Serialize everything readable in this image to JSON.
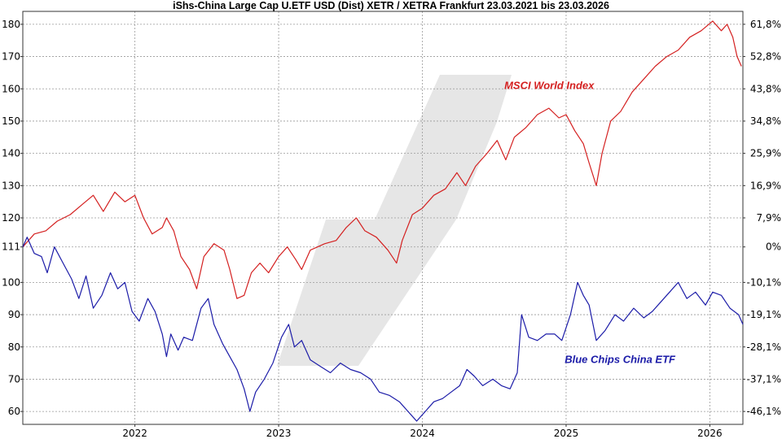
{
  "chart_data": {
    "type": "line",
    "title": "iShs-China Large Cap U.ETF USD (Dist) XETR / XETRA Frankfurt 23.03.2021 bis 23.03.2026",
    "xlabel": "",
    "ylabel": "",
    "x_range": [
      2021.22,
      2026.23
    ],
    "ylim": [
      56,
      184
    ],
    "x_ticks": [
      {
        "label": "2022",
        "value": 2022.0
      },
      {
        "label": "2023",
        "value": 2023.0
      },
      {
        "label": "2024",
        "value": 2024.0
      },
      {
        "label": "2025",
        "value": 2025.0
      },
      {
        "label": "2026",
        "value": 2026.0
      }
    ],
    "y_ticks_left": [
      {
        "label": "60",
        "value": 60
      },
      {
        "label": "70",
        "value": 70
      },
      {
        "label": "80",
        "value": 80
      },
      {
        "label": "90",
        "value": 90
      },
      {
        "label": "100",
        "value": 100
      },
      {
        "label": "111",
        "value": 111
      },
      {
        "label": "120",
        "value": 120
      },
      {
        "label": "130",
        "value": 130
      },
      {
        "label": "140",
        "value": 140
      },
      {
        "label": "150",
        "value": 150
      },
      {
        "label": "160",
        "value": 160
      },
      {
        "label": "170",
        "value": 170
      },
      {
        "label": "180",
        "value": 180
      }
    ],
    "y_ticks_right": [
      {
        "label": "61,8%",
        "value": 180
      },
      {
        "label": "52,8%",
        "value": 170
      },
      {
        "label": "43,8%",
        "value": 160
      },
      {
        "label": "34,8%",
        "value": 150
      },
      {
        "label": "25,9%",
        "value": 140
      },
      {
        "label": "16,9%",
        "value": 130
      },
      {
        "label": "7,9%",
        "value": 120
      },
      {
        "label": "0%",
        "value": 111
      },
      {
        "label": "-10,1%",
        "value": 100
      },
      {
        "label": "-19,1%",
        "value": 90
      },
      {
        "label": "-28,1%",
        "value": 80
      },
      {
        "label": "-37,1%",
        "value": 70
      },
      {
        "label": "-46,1%",
        "value": 60
      }
    ],
    "series": [
      {
        "name": "MSCI World Index",
        "color": "#d42020",
        "points": [
          [
            2021.22,
            111
          ],
          [
            2021.3,
            115
          ],
          [
            2021.38,
            116
          ],
          [
            2021.46,
            119
          ],
          [
            2021.55,
            121
          ],
          [
            2021.63,
            124
          ],
          [
            2021.71,
            127
          ],
          [
            2021.78,
            122
          ],
          [
            2021.86,
            128
          ],
          [
            2021.93,
            125
          ],
          [
            2022.0,
            127
          ],
          [
            2022.06,
            120
          ],
          [
            2022.12,
            115
          ],
          [
            2022.19,
            117
          ],
          [
            2022.22,
            120
          ],
          [
            2022.27,
            116
          ],
          [
            2022.32,
            108
          ],
          [
            2022.38,
            104
          ],
          [
            2022.43,
            98
          ],
          [
            2022.48,
            108
          ],
          [
            2022.55,
            112
          ],
          [
            2022.62,
            110
          ],
          [
            2022.66,
            104
          ],
          [
            2022.71,
            95
          ],
          [
            2022.76,
            96
          ],
          [
            2022.81,
            103
          ],
          [
            2022.87,
            106
          ],
          [
            2022.93,
            103
          ],
          [
            2023.0,
            108
          ],
          [
            2023.06,
            111
          ],
          [
            2023.12,
            107
          ],
          [
            2023.16,
            104
          ],
          [
            2023.22,
            110
          ],
          [
            2023.32,
            112
          ],
          [
            2023.4,
            113
          ],
          [
            2023.47,
            117
          ],
          [
            2023.54,
            120
          ],
          [
            2023.6,
            116
          ],
          [
            2023.68,
            114
          ],
          [
            2023.76,
            110
          ],
          [
            2023.82,
            106
          ],
          [
            2023.86,
            113
          ],
          [
            2023.93,
            121
          ],
          [
            2024.0,
            123
          ],
          [
            2024.08,
            127
          ],
          [
            2024.16,
            129
          ],
          [
            2024.24,
            134
          ],
          [
            2024.3,
            130
          ],
          [
            2024.37,
            136
          ],
          [
            2024.45,
            140
          ],
          [
            2024.52,
            144
          ],
          [
            2024.58,
            138
          ],
          [
            2024.64,
            145
          ],
          [
            2024.72,
            148
          ],
          [
            2024.8,
            152
          ],
          [
            2024.88,
            154
          ],
          [
            2024.95,
            151
          ],
          [
            2025.0,
            152
          ],
          [
            2025.06,
            147
          ],
          [
            2025.12,
            143
          ],
          [
            2025.16,
            137
          ],
          [
            2025.21,
            130
          ],
          [
            2025.25,
            140
          ],
          [
            2025.31,
            150
          ],
          [
            2025.38,
            153
          ],
          [
            2025.46,
            159
          ],
          [
            2025.54,
            163
          ],
          [
            2025.62,
            167
          ],
          [
            2025.7,
            170
          ],
          [
            2025.78,
            172
          ],
          [
            2025.86,
            176
          ],
          [
            2025.94,
            178
          ],
          [
            2026.02,
            181
          ],
          [
            2026.08,
            178
          ],
          [
            2026.12,
            180
          ],
          [
            2026.16,
            176
          ],
          [
            2026.19,
            170
          ],
          [
            2026.22,
            167
          ]
        ]
      },
      {
        "name": "Blue Chips China ETF",
        "color": "#1c1ca8",
        "points": [
          [
            2021.22,
            111
          ],
          [
            2021.25,
            114
          ],
          [
            2021.3,
            109
          ],
          [
            2021.35,
            108
          ],
          [
            2021.39,
            103
          ],
          [
            2021.44,
            111
          ],
          [
            2021.5,
            106
          ],
          [
            2021.56,
            101
          ],
          [
            2021.61,
            95
          ],
          [
            2021.66,
            102
          ],
          [
            2021.71,
            92
          ],
          [
            2021.77,
            96
          ],
          [
            2021.83,
            103
          ],
          [
            2021.88,
            98
          ],
          [
            2021.93,
            100
          ],
          [
            2021.98,
            91
          ],
          [
            2022.03,
            88
          ],
          [
            2022.09,
            95
          ],
          [
            2022.14,
            91
          ],
          [
            2022.19,
            84
          ],
          [
            2022.22,
            77
          ],
          [
            2022.25,
            84
          ],
          [
            2022.3,
            79
          ],
          [
            2022.34,
            83
          ],
          [
            2022.4,
            82
          ],
          [
            2022.46,
            92
          ],
          [
            2022.51,
            95
          ],
          [
            2022.55,
            87
          ],
          [
            2022.61,
            81
          ],
          [
            2022.66,
            77
          ],
          [
            2022.71,
            73
          ],
          [
            2022.76,
            67
          ],
          [
            2022.8,
            60
          ],
          [
            2022.84,
            66
          ],
          [
            2022.9,
            70
          ],
          [
            2022.96,
            75
          ],
          [
            2023.02,
            83
          ],
          [
            2023.07,
            87
          ],
          [
            2023.11,
            80
          ],
          [
            2023.16,
            82
          ],
          [
            2023.22,
            76
          ],
          [
            2023.29,
            74
          ],
          [
            2023.36,
            72
          ],
          [
            2023.43,
            75
          ],
          [
            2023.5,
            73
          ],
          [
            2023.57,
            72
          ],
          [
            2023.64,
            70
          ],
          [
            2023.7,
            66
          ],
          [
            2023.77,
            65
          ],
          [
            2023.84,
            63
          ],
          [
            2023.9,
            60
          ],
          [
            2023.96,
            57
          ],
          [
            2024.02,
            60
          ],
          [
            2024.08,
            63
          ],
          [
            2024.14,
            64
          ],
          [
            2024.2,
            66
          ],
          [
            2024.26,
            68
          ],
          [
            2024.31,
            73
          ],
          [
            2024.36,
            71
          ],
          [
            2024.42,
            68
          ],
          [
            2024.49,
            70
          ],
          [
            2024.55,
            68
          ],
          [
            2024.61,
            67
          ],
          [
            2024.66,
            72
          ],
          [
            2024.69,
            90
          ],
          [
            2024.74,
            83
          ],
          [
            2024.8,
            82
          ],
          [
            2024.86,
            84
          ],
          [
            2024.92,
            84
          ],
          [
            2024.97,
            82
          ],
          [
            2025.03,
            90
          ],
          [
            2025.08,
            100
          ],
          [
            2025.12,
            96
          ],
          [
            2025.16,
            93
          ],
          [
            2025.21,
            82
          ],
          [
            2025.27,
            85
          ],
          [
            2025.34,
            90
          ],
          [
            2025.4,
            88
          ],
          [
            2025.47,
            92
          ],
          [
            2025.54,
            89
          ],
          [
            2025.6,
            91
          ],
          [
            2025.66,
            94
          ],
          [
            2025.72,
            97
          ],
          [
            2025.78,
            100
          ],
          [
            2025.84,
            95
          ],
          [
            2025.9,
            97
          ],
          [
            2025.97,
            93
          ],
          [
            2026.02,
            97
          ],
          [
            2026.08,
            96
          ],
          [
            2026.14,
            92
          ],
          [
            2026.2,
            90
          ],
          [
            2026.23,
            87
          ]
        ]
      }
    ],
    "annotations": [
      {
        "text": "MSCI World Index",
        "series": "MSCI World Index",
        "x": 2024.57,
        "y": 160
      },
      {
        "text": "Blue Chips China ETF",
        "series": "Blue Chips China ETF",
        "x": 2024.99,
        "y": 75
      }
    ]
  }
}
